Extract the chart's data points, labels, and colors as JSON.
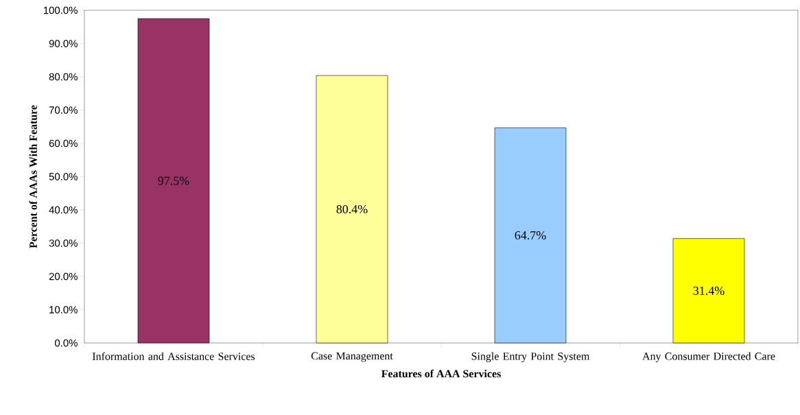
{
  "chart_data": {
    "type": "bar",
    "xlabel": "Features of AAA Services",
    "ylabel": "Percent of AAAs With Feature",
    "categories": [
      "Information and Assistance Services",
      "Case Management",
      "Single Entry Point System",
      "Any Consumer Directed Care"
    ],
    "values": [
      97.5,
      80.4,
      64.7,
      31.4
    ],
    "colors": [
      "#993366",
      "#ffff99",
      "#99ccff",
      "#ffff00"
    ],
    "value_labels": [
      "97.5%",
      "80.4%",
      "64.7%",
      "31.4%"
    ],
    "ylim": [
      0,
      100
    ],
    "yticks": [
      {
        "value": 0,
        "label": "0.0%"
      },
      {
        "value": 10,
        "label": "10.0%"
      },
      {
        "value": 20,
        "label": "20.0%"
      },
      {
        "value": 30,
        "label": "30.0%"
      },
      {
        "value": 40,
        "label": "40.0%"
      },
      {
        "value": 50,
        "label": "50.0%"
      },
      {
        "value": 60,
        "label": "60.0%"
      },
      {
        "value": 70,
        "label": "70.0%"
      },
      {
        "value": 80,
        "label": "80.0%"
      },
      {
        "value": 90,
        "label": "90.0%"
      },
      {
        "value": 100,
        "label": "100.0%"
      }
    ]
  }
}
